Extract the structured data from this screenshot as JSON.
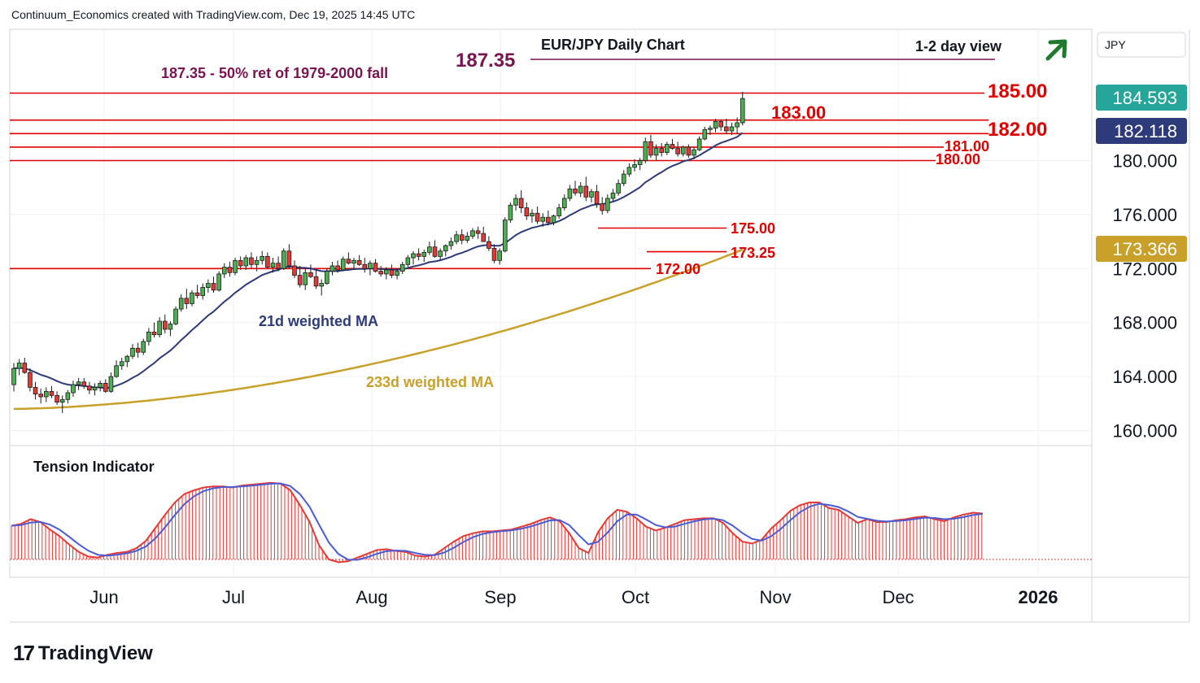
{
  "header": {
    "caption": "Continuum_Economics created with TradingView.com, Dec 19, 2025 14:45 UTC"
  },
  "brand": {
    "mark": "17",
    "name": "TradingView"
  },
  "chart_data": {
    "type": "candlestick",
    "title": "EUR/JPY Daily Chart",
    "subtitle": "1-2 day view",
    "currency": "JPY",
    "outlook_icon": "arrow-up-right-icon",
    "x_ticks": [
      "Jun",
      "Jul",
      "Aug",
      "Sep",
      "Oct",
      "Nov",
      "Dec",
      "2026"
    ],
    "y_ticks": [
      160,
      164,
      168,
      172,
      176,
      180
    ],
    "y_range": [
      158.5,
      188.5
    ],
    "price_badges": [
      {
        "value": "184.593",
        "color": "#26a69a"
      },
      {
        "value": "182.118",
        "color": "#2e3b7a"
      },
      {
        "value": "173.366",
        "color": "#c8a02a"
      }
    ],
    "levels": [
      {
        "value": 185.0,
        "label": "185.00"
      },
      {
        "value": 183.0,
        "label": "183.00"
      },
      {
        "value": 182.0,
        "label": "182.00"
      },
      {
        "value": 181.0,
        "label": "181.00"
      },
      {
        "value": 180.0,
        "label": "180.00"
      },
      {
        "value": 175.0,
        "label": "175.00"
      },
      {
        "value": 173.25,
        "label": "173.25"
      },
      {
        "value": 172.0,
        "label": "172.00"
      }
    ],
    "target_level": {
      "value": 187.35,
      "label": "187.35",
      "note": "187.35 - 50% ret of 1979-2000 fall"
    },
    "series": [
      {
        "name": "21d weighted MA",
        "color": "#2e3b7a"
      },
      {
        "name": "233d weighted MA",
        "color": "#c8a02a"
      }
    ],
    "candles": [
      [
        163.4,
        165.0,
        162.9,
        164.6
      ],
      [
        164.6,
        165.3,
        164.1,
        165.0
      ],
      [
        165.0,
        165.4,
        164.2,
        164.3
      ],
      [
        164.3,
        164.6,
        162.9,
        163.2
      ],
      [
        163.2,
        163.6,
        162.3,
        162.7
      ],
      [
        162.7,
        163.1,
        162.0,
        162.5
      ],
      [
        162.5,
        163.2,
        162.1,
        162.9
      ],
      [
        162.9,
        163.3,
        162.4,
        162.6
      ],
      [
        162.6,
        162.9,
        161.9,
        162.1
      ],
      [
        162.1,
        162.6,
        161.3,
        162.3
      ],
      [
        162.3,
        163.0,
        162.0,
        162.8
      ],
      [
        162.8,
        163.7,
        162.5,
        163.4
      ],
      [
        163.4,
        163.9,
        163.0,
        163.6
      ],
      [
        163.6,
        163.9,
        163.1,
        163.3
      ],
      [
        163.3,
        163.6,
        162.7,
        163.0
      ],
      [
        163.0,
        163.5,
        162.6,
        163.2
      ],
      [
        163.2,
        163.7,
        162.9,
        163.5
      ],
      [
        163.5,
        163.8,
        162.8,
        162.9
      ],
      [
        162.9,
        164.3,
        162.8,
        164.0
      ],
      [
        164.0,
        165.2,
        163.9,
        164.8
      ],
      [
        164.8,
        165.4,
        164.5,
        165.1
      ],
      [
        165.1,
        165.6,
        164.7,
        165.5
      ],
      [
        165.5,
        166.4,
        165.3,
        166.1
      ],
      [
        166.1,
        166.5,
        165.4,
        165.8
      ],
      [
        165.8,
        166.8,
        165.6,
        166.6
      ],
      [
        166.6,
        167.6,
        166.3,
        167.3
      ],
      [
        167.3,
        168.0,
        166.9,
        167.1
      ],
      [
        167.1,
        168.4,
        166.9,
        168.1
      ],
      [
        168.1,
        168.6,
        167.2,
        167.5
      ],
      [
        167.5,
        168.1,
        167.0,
        167.9
      ],
      [
        167.9,
        169.2,
        167.8,
        169.0
      ],
      [
        169.0,
        170.1,
        168.8,
        169.8
      ],
      [
        169.8,
        170.5,
        169.0,
        169.4
      ],
      [
        169.4,
        170.4,
        169.2,
        170.2
      ],
      [
        170.2,
        170.8,
        169.8,
        170.0
      ],
      [
        170.0,
        170.9,
        169.7,
        170.6
      ],
      [
        170.6,
        171.2,
        170.2,
        170.9
      ],
      [
        170.9,
        171.4,
        170.2,
        170.4
      ],
      [
        170.4,
        171.8,
        170.3,
        171.6
      ],
      [
        171.6,
        172.4,
        171.3,
        172.1
      ],
      [
        172.1,
        172.5,
        171.4,
        171.7
      ],
      [
        171.7,
        172.8,
        171.5,
        172.6
      ],
      [
        172.6,
        172.9,
        171.9,
        172.2
      ],
      [
        172.2,
        173.0,
        171.9,
        172.8
      ],
      [
        172.8,
        173.2,
        172.0,
        172.3
      ],
      [
        172.3,
        172.9,
        171.8,
        172.6
      ],
      [
        172.6,
        173.3,
        172.3,
        172.9
      ],
      [
        172.9,
        173.2,
        172.0,
        172.1
      ],
      [
        172.1,
        172.8,
        171.7,
        172.4
      ],
      [
        172.4,
        172.9,
        171.8,
        172.0
      ],
      [
        172.0,
        173.5,
        171.9,
        173.3
      ],
      [
        173.3,
        173.8,
        172.0,
        172.2
      ],
      [
        172.2,
        172.6,
        171.3,
        171.5
      ],
      [
        171.5,
        172.2,
        170.6,
        170.8
      ],
      [
        170.8,
        172.0,
        170.4,
        171.7
      ],
      [
        171.7,
        172.3,
        171.3,
        171.4
      ],
      [
        171.4,
        171.9,
        170.5,
        170.7
      ],
      [
        170.7,
        171.2,
        170.0,
        170.9
      ],
      [
        170.9,
        172.0,
        170.8,
        171.8
      ],
      [
        171.8,
        172.5,
        171.5,
        172.2
      ],
      [
        172.2,
        172.6,
        171.7,
        171.9
      ],
      [
        171.9,
        172.9,
        171.8,
        172.7
      ],
      [
        172.7,
        173.2,
        172.3,
        172.4
      ],
      [
        172.4,
        172.8,
        171.9,
        172.6
      ],
      [
        172.6,
        173.0,
        172.2,
        172.3
      ],
      [
        172.3,
        172.8,
        171.7,
        172.0
      ],
      [
        172.0,
        172.6,
        171.5,
        172.4
      ],
      [
        172.4,
        172.7,
        171.7,
        171.8
      ],
      [
        171.8,
        172.2,
        171.4,
        171.6
      ],
      [
        171.6,
        172.1,
        171.2,
        171.9
      ],
      [
        171.9,
        172.3,
        171.3,
        171.5
      ],
      [
        171.5,
        172.0,
        171.2,
        171.8
      ],
      [
        171.8,
        172.5,
        171.6,
        172.3
      ],
      [
        172.3,
        173.0,
        172.1,
        172.8
      ],
      [
        172.8,
        173.3,
        172.3,
        173.1
      ],
      [
        173.1,
        173.5,
        172.6,
        172.9
      ],
      [
        172.9,
        173.4,
        172.5,
        173.2
      ],
      [
        173.2,
        174.0,
        173.0,
        173.6
      ],
      [
        173.6,
        174.1,
        172.8,
        172.9
      ],
      [
        172.9,
        173.5,
        172.6,
        173.3
      ],
      [
        173.3,
        173.8,
        172.9,
        173.7
      ],
      [
        173.7,
        174.3,
        173.4,
        174.0
      ],
      [
        174.0,
        174.8,
        173.8,
        174.5
      ],
      [
        174.5,
        174.9,
        173.8,
        174.1
      ],
      [
        174.1,
        174.7,
        173.9,
        174.4
      ],
      [
        174.4,
        175.0,
        174.2,
        174.8
      ],
      [
        174.8,
        175.1,
        174.2,
        174.6
      ],
      [
        174.6,
        175.1,
        174.0,
        174.0
      ],
      [
        174.0,
        174.4,
        173.3,
        173.5
      ],
      [
        173.5,
        173.8,
        172.4,
        172.6
      ],
      [
        172.6,
        173.5,
        172.3,
        173.3
      ],
      [
        173.3,
        175.8,
        173.2,
        175.6
      ],
      [
        175.6,
        176.9,
        175.4,
        176.7
      ],
      [
        176.7,
        177.5,
        176.3,
        177.2
      ],
      [
        177.2,
        177.8,
        176.1,
        176.5
      ],
      [
        176.5,
        176.9,
        175.6,
        175.9
      ],
      [
        175.9,
        176.4,
        175.4,
        176.1
      ],
      [
        176.1,
        176.6,
        175.3,
        175.5
      ],
      [
        175.5,
        176.1,
        175.1,
        175.8
      ],
      [
        175.8,
        176.3,
        175.2,
        175.4
      ],
      [
        175.4,
        176.0,
        175.2,
        175.9
      ],
      [
        175.9,
        176.8,
        175.7,
        176.5
      ],
      [
        176.5,
        177.5,
        176.3,
        177.2
      ],
      [
        177.2,
        178.2,
        177.0,
        177.9
      ],
      [
        177.9,
        178.5,
        177.4,
        177.6
      ],
      [
        177.6,
        178.4,
        177.3,
        178.1
      ],
      [
        178.1,
        178.8,
        177.0,
        177.3
      ],
      [
        177.3,
        177.9,
        176.9,
        177.7
      ],
      [
        177.7,
        178.2,
        176.5,
        176.8
      ],
      [
        176.8,
        177.3,
        176.0,
        176.3
      ],
      [
        176.3,
        177.5,
        176.1,
        177.2
      ],
      [
        177.2,
        177.9,
        177.0,
        177.6
      ],
      [
        177.6,
        178.6,
        177.4,
        178.3
      ],
      [
        178.3,
        179.3,
        178.1,
        179.0
      ],
      [
        179.0,
        179.8,
        178.8,
        179.5
      ],
      [
        179.5,
        180.1,
        179.2,
        179.7
      ],
      [
        179.7,
        180.2,
        179.3,
        180.0
      ],
      [
        180.0,
        181.7,
        179.8,
        181.4
      ],
      [
        181.4,
        181.9,
        180.2,
        180.4
      ],
      [
        180.4,
        181.2,
        180.0,
        180.9
      ],
      [
        180.9,
        181.3,
        180.3,
        180.6
      ],
      [
        180.6,
        181.4,
        180.4,
        181.2
      ],
      [
        181.2,
        181.6,
        180.8,
        180.9
      ],
      [
        180.9,
        181.4,
        180.3,
        180.5
      ],
      [
        180.5,
        181.1,
        180.3,
        181.0
      ],
      [
        181.0,
        181.2,
        180.2,
        180.4
      ],
      [
        180.4,
        181.0,
        180.1,
        180.8
      ],
      [
        180.8,
        181.8,
        180.7,
        181.6
      ],
      [
        181.6,
        182.5,
        181.5,
        182.3
      ],
      [
        182.3,
        182.6,
        181.9,
        182.4
      ],
      [
        182.4,
        183.1,
        182.1,
        182.9
      ],
      [
        182.9,
        183.0,
        182.2,
        182.5
      ],
      [
        182.5,
        183.1,
        182.0,
        182.2
      ],
      [
        182.2,
        182.8,
        181.9,
        182.5
      ],
      [
        182.5,
        183.2,
        182.0,
        182.8
      ],
      [
        182.8,
        185.1,
        182.6,
        184.6
      ]
    ],
    "tension": [
      0.36,
      0.38,
      0.43,
      0.4,
      0.32,
      0.25,
      0.16,
      0.08,
      0.03,
      0.02,
      0.05,
      0.07,
      0.08,
      0.12,
      0.2,
      0.34,
      0.48,
      0.61,
      0.7,
      0.74,
      0.77,
      0.78,
      0.78,
      0.77,
      0.79,
      0.8,
      0.81,
      0.82,
      0.81,
      0.74,
      0.58,
      0.4,
      0.15,
      0.0,
      -0.03,
      -0.02,
      0.02,
      0.06,
      0.1,
      0.11,
      0.09,
      0.08,
      0.04,
      0.03,
      0.05,
      0.12,
      0.19,
      0.25,
      0.28,
      0.3,
      0.3,
      0.31,
      0.32,
      0.35,
      0.38,
      0.42,
      0.45,
      0.41,
      0.28,
      0.12,
      0.07,
      0.29,
      0.44,
      0.53,
      0.51,
      0.44,
      0.35,
      0.31,
      0.34,
      0.38,
      0.42,
      0.43,
      0.44,
      0.44,
      0.39,
      0.28,
      0.19,
      0.17,
      0.21,
      0.33,
      0.42,
      0.52,
      0.58,
      0.61,
      0.61,
      0.55,
      0.53,
      0.46,
      0.39,
      0.43,
      0.4,
      0.4,
      0.42,
      0.43,
      0.45,
      0.46,
      0.43,
      0.41,
      0.45,
      0.48,
      0.5,
      0.49
    ]
  }
}
